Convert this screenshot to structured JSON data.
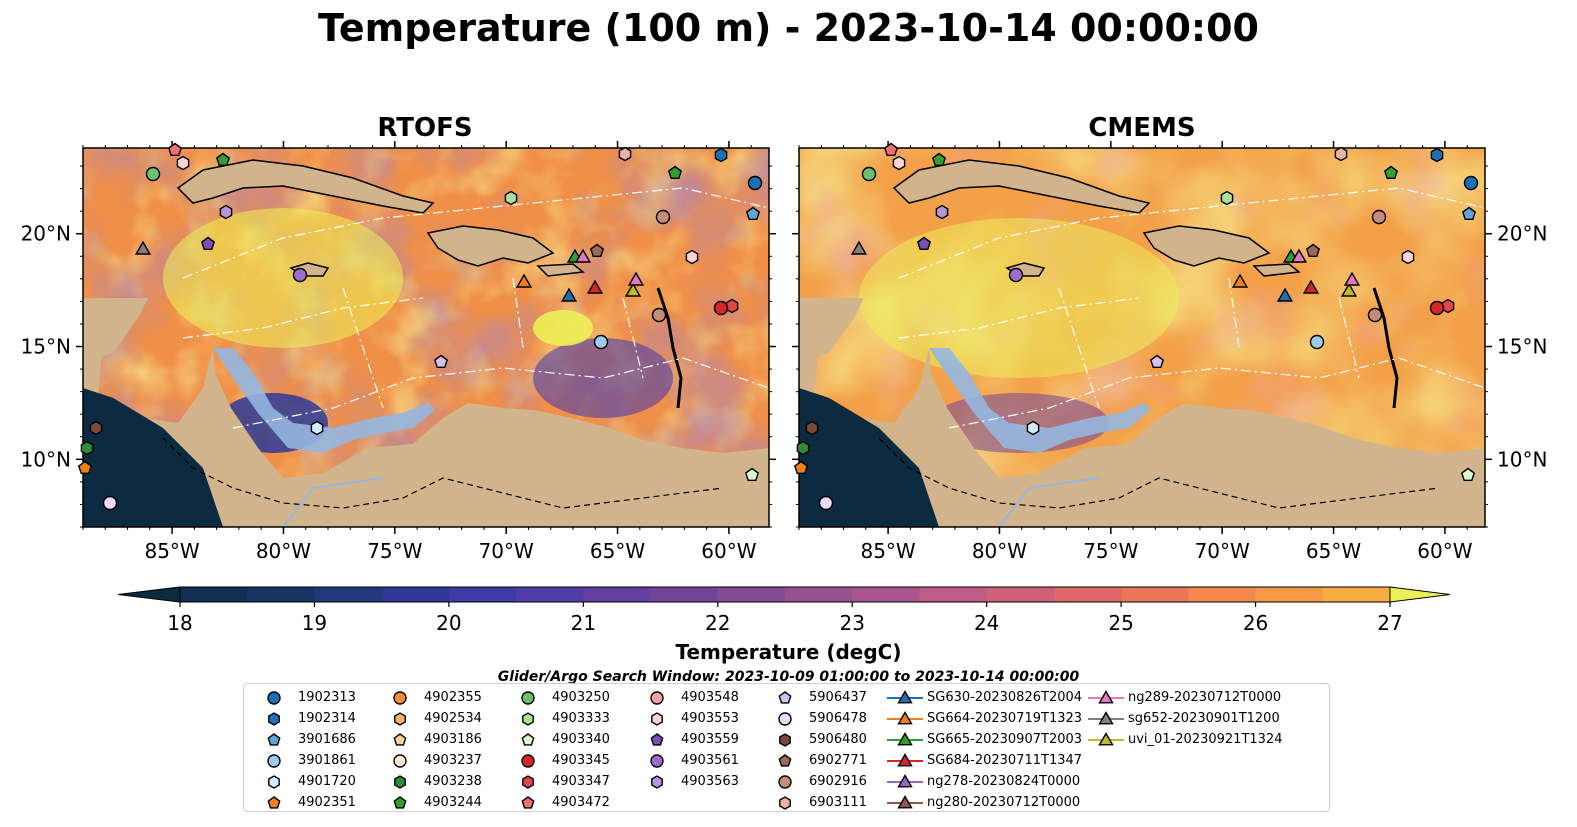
{
  "title": "Temperature (100 m) - 2023-10-14 00:00:00",
  "colors": {
    "ocean_base": "#f0a050",
    "land": "#d2b48c",
    "shelf": "#95b6df",
    "deep_blue": "#0c2a40"
  },
  "chart_data": [
    {
      "type": "heatmap",
      "title": "RTOFS",
      "xlabel": "",
      "ylabel": "",
      "x_ticks": [
        "85°W",
        "80°W",
        "75°W",
        "70°W",
        "65°W",
        "60°W"
      ],
      "x_tick_values": [
        -85,
        -80,
        -75,
        -70,
        -65,
        -60
      ],
      "y_ticks": [
        "20°N",
        "15°N",
        "10°N"
      ],
      "y_tick_values": [
        20,
        15,
        10
      ],
      "xlim": [
        -89,
        -58.2
      ],
      "ylim": [
        7,
        23.8
      ]
    },
    {
      "type": "heatmap",
      "title": "CMEMS",
      "xlabel": "",
      "ylabel": "",
      "x_ticks": [
        "85°W",
        "80°W",
        "75°W",
        "70°W",
        "65°W",
        "60°W"
      ],
      "x_tick_values": [
        -85,
        -80,
        -75,
        -70,
        -65,
        -60
      ],
      "y_ticks": [
        "20°N",
        "15°N",
        "10°N"
      ],
      "y_tick_values": [
        20,
        15,
        10
      ],
      "xlim": [
        -89,
        -58.2
      ],
      "ylim": [
        7,
        23.8
      ]
    }
  ],
  "colorbar": {
    "label": "Temperature (degC)",
    "min": 18,
    "max": 27,
    "step": 0.5,
    "ticks": [
      "18",
      "19",
      "20",
      "21",
      "22",
      "23",
      "24",
      "25",
      "26",
      "27"
    ],
    "colors": [
      "#0e2a3e",
      "#102f52",
      "#173465",
      "#22377c",
      "#2e3996",
      "#3d3ba5",
      "#4f3ea9",
      "#613f9e",
      "#724496",
      "#844b92",
      "#975190",
      "#aa558d",
      "#bd5c86",
      "#ce6078",
      "#dc6867",
      "#e87758",
      "#f2884c",
      "#f69a45",
      "#f8ad42",
      "#f8c142",
      "#f6d548",
      "#ecf056"
    ]
  },
  "search_window": "Glider/Argo Search Window: 2023-10-09 01:00:00 to 2023-10-14 00:00:00",
  "legend": [
    [
      "1902313",
      "circle",
      "#1f6fb4"
    ],
    [
      "1902314",
      "hexagon",
      "#1f6fb4"
    ],
    [
      "3901686",
      "pentagon",
      "#63a3d6"
    ],
    [
      "3901861",
      "circle",
      "#9ccaec"
    ],
    [
      "4901720",
      "hexagon",
      "#d4ecfa"
    ],
    [
      "4902351",
      "pentagon",
      "#f07f1d"
    ],
    [
      "4902355",
      "circle",
      "#f5922f"
    ],
    [
      "4902534",
      "hexagon",
      "#f7b170"
    ],
    [
      "4903186",
      "pentagon",
      "#fbcf9e"
    ],
    [
      "4903237",
      "circle",
      "#fde8d0"
    ],
    [
      "4903238",
      "hexagon",
      "#2e8b3a"
    ],
    [
      "4903244",
      "pentagon",
      "#33a02c"
    ],
    [
      "4903250",
      "circle",
      "#6cc26a"
    ],
    [
      "4903333",
      "hexagon",
      "#a8e09c"
    ],
    [
      "4903340",
      "pentagon",
      "#daf5cf"
    ],
    [
      "4903345",
      "circle",
      "#d62728"
    ],
    [
      "4903347",
      "hexagon",
      "#e04848"
    ],
    [
      "4903472",
      "pentagon",
      "#f37070"
    ],
    [
      "4903548",
      "circle",
      "#f4a3a3"
    ],
    [
      "4903553",
      "hexagon",
      "#fcd3d3"
    ],
    [
      "4903559",
      "pentagon",
      "#7b4fb5"
    ],
    [
      "4903561",
      "circle",
      "#9b6ecb"
    ],
    [
      "4903563",
      "hexagon",
      "#b894dd"
    ],
    [
      "5906437",
      "pentagon",
      "#d7bdf0"
    ],
    [
      "5906478",
      "circle",
      "#efd9fb"
    ],
    [
      "5906480",
      "hexagon",
      "#7a4a38"
    ],
    [
      "6902771",
      "pentagon",
      "#9c6a58"
    ],
    [
      "6902916",
      "circle",
      "#c58c78"
    ],
    [
      "6903111",
      "hexagon",
      "#e9b3a4"
    ],
    [
      "SG630-20230826T2004",
      "triangle",
      "#1f6fb4"
    ],
    [
      "SG664-20230719T1323",
      "triangle",
      "#f07f1d"
    ],
    [
      "SG665-20230907T2003",
      "triangle",
      "#2ca02c"
    ],
    [
      "SG684-20230711T1347",
      "triangle",
      "#d62728"
    ],
    [
      "ng278-20230824T0000",
      "triangle",
      "#9467bd"
    ],
    [
      "ng280-20230712T0000",
      "triangle",
      "#8c564b"
    ],
    [
      "ng289-20230712T0000",
      "triangle",
      "#e377c2"
    ],
    [
      "sg652-20230901T1200",
      "triangle",
      "#7f7f7f"
    ],
    [
      "uvi_01-20230921T1324",
      "triangle",
      "#bcbd22"
    ]
  ]
}
